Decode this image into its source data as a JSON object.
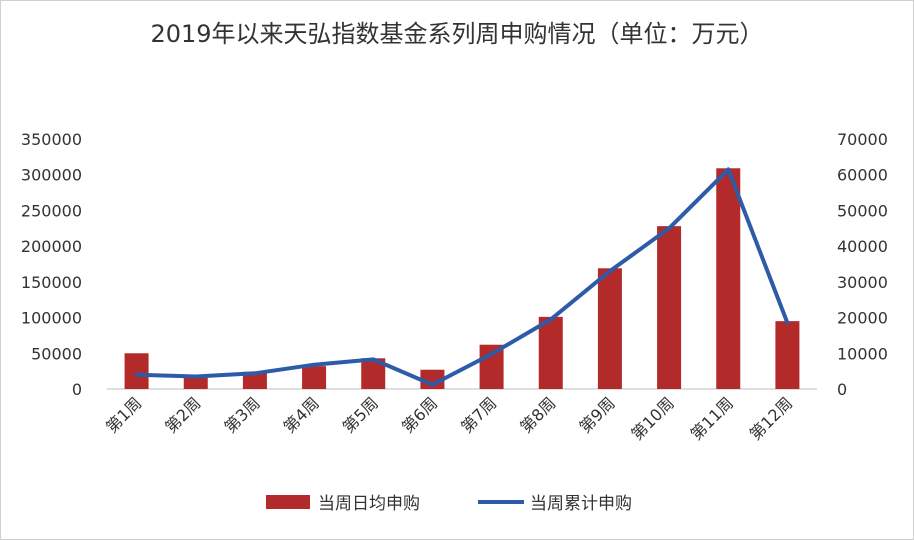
{
  "chart_data": {
    "type": "bar",
    "title": "2019年以来天弘指数基金系列周申购情况（单位：万元）",
    "categories": [
      "第1周",
      "第2周",
      "第3周",
      "第4周",
      "第5周",
      "第6周",
      "第7周",
      "第8周",
      "第9周",
      "第10周",
      "第11周",
      "第12周"
    ],
    "series": [
      {
        "name": "当周日均申购",
        "type": "bar",
        "axis": "left",
        "color": "#B22A2A",
        "values": [
          50000,
          20000,
          24000,
          32000,
          43000,
          27000,
          62000,
          101000,
          169000,
          228000,
          309000,
          95000
        ]
      },
      {
        "name": "当周累计申购",
        "type": "line",
        "axis": "right",
        "color": "#2E5BA8",
        "values": [
          4000,
          3500,
          4400,
          6800,
          8300,
          1200,
          9800,
          19500,
          33000,
          45000,
          61500,
          18500
        ]
      }
    ],
    "y_left": {
      "min": 0,
      "max": 350000,
      "ticks": [
        "0",
        "50000",
        "100000",
        "150000",
        "200000",
        "250000",
        "300000",
        "350000"
      ]
    },
    "y_right": {
      "min": 0,
      "max": 70000,
      "ticks": [
        "0",
        "10000",
        "20000",
        "30000",
        "40000",
        "50000",
        "60000",
        "70000"
      ]
    },
    "legend": "bottom",
    "grid": false
  }
}
